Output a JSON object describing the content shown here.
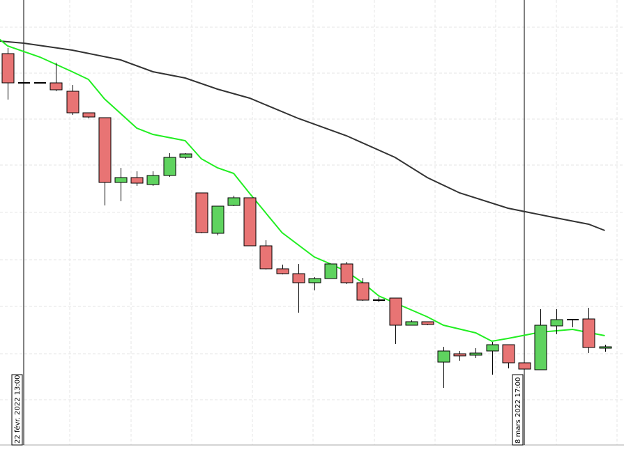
{
  "chart_data": {
    "type": "candlestick",
    "grid": true,
    "colors": {
      "up": "#5fd35f",
      "down": "#e87474",
      "ma_fast": "#22ee22",
      "ma_slow": "#333333",
      "marker": "#000000",
      "grid": "#e6e6e6"
    },
    "ylim": [
      0,
      662
    ],
    "markers": [
      {
        "x": 0,
        "label": "22 févr. 2022 13:00"
      },
      {
        "x": 31,
        "label": "8 mars 2022 17:00"
      }
    ],
    "candles": [
      {
        "o": 585,
        "h": 593,
        "l": 519,
        "c": 543
      },
      {
        "o": 543,
        "h": 543,
        "l": 543,
        "c": 543
      },
      {
        "o": 543,
        "h": 543,
        "l": 543,
        "c": 543
      },
      {
        "o": 543,
        "h": 572,
        "l": 531,
        "c": 533
      },
      {
        "o": 531,
        "h": 540,
        "l": 497,
        "c": 500
      },
      {
        "o": 500,
        "h": 500,
        "l": 492,
        "c": 494
      },
      {
        "o": 493,
        "h": 493,
        "l": 367,
        "c": 400
      },
      {
        "o": 400,
        "h": 421,
        "l": 373,
        "c": 407
      },
      {
        "o": 407,
        "h": 416,
        "l": 395,
        "c": 399
      },
      {
        "o": 397,
        "h": 416,
        "l": 395,
        "c": 410
      },
      {
        "o": 410,
        "h": 442,
        "l": 408,
        "c": 436
      },
      {
        "o": 436,
        "h": 442,
        "l": 434,
        "c": 441
      },
      {
        "o": 385,
        "h": 385,
        "l": 327,
        "c": 328
      },
      {
        "o": 327,
        "h": 366,
        "l": 324,
        "c": 366
      },
      {
        "o": 367,
        "h": 381,
        "l": 366,
        "c": 378
      },
      {
        "o": 378,
        "h": 378,
        "l": 309,
        "c": 309
      },
      {
        "o": 309,
        "h": 317,
        "l": 275,
        "c": 276
      },
      {
        "o": 276,
        "h": 282,
        "l": 268,
        "c": 269
      },
      {
        "o": 269,
        "h": 283,
        "l": 213,
        "c": 256
      },
      {
        "o": 256,
        "h": 264,
        "l": 245,
        "c": 262
      },
      {
        "o": 262,
        "h": 283,
        "l": 262,
        "c": 283
      },
      {
        "o": 283,
        "h": 286,
        "l": 254,
        "c": 256
      },
      {
        "o": 256,
        "h": 263,
        "l": 230,
        "c": 231
      },
      {
        "o": 231,
        "h": 235,
        "l": 228,
        "c": 231
      },
      {
        "o": 234,
        "h": 234,
        "l": 168,
        "c": 195
      },
      {
        "o": 195,
        "h": 202,
        "l": 195,
        "c": 200
      },
      {
        "o": 200,
        "h": 200,
        "l": 195,
        "c": 196
      },
      {
        "o": 142,
        "h": 164,
        "l": 105,
        "c": 158
      },
      {
        "o": 154,
        "h": 158,
        "l": 144,
        "c": 151
      },
      {
        "o": 152,
        "h": 162,
        "l": 148,
        "c": 155
      },
      {
        "o": 158,
        "h": 171,
        "l": 124,
        "c": 167
      },
      {
        "o": 167,
        "h": 167,
        "l": 133,
        "c": 141
      },
      {
        "o": 141,
        "h": 141,
        "l": 132,
        "c": 132
      },
      {
        "o": 131,
        "h": 218,
        "l": 131,
        "c": 195
      },
      {
        "o": 194,
        "h": 218,
        "l": 182,
        "c": 203
      },
      {
        "o": 203,
        "h": 203,
        "l": 192,
        "c": 203
      },
      {
        "o": 204,
        "h": 220,
        "l": 155,
        "c": 163
      },
      {
        "o": 162,
        "h": 167,
        "l": 157,
        "c": 164
      }
    ],
    "ma_fast": [
      {
        "x": -1,
        "y": 615
      },
      {
        "x": 0,
        "y": 596
      },
      {
        "x": 2,
        "y": 580
      },
      {
        "x": 4,
        "y": 559
      },
      {
        "x": 5,
        "y": 548
      },
      {
        "x": 6,
        "y": 520
      },
      {
        "x": 8,
        "y": 478
      },
      {
        "x": 9,
        "y": 469
      },
      {
        "x": 11,
        "y": 460
      },
      {
        "x": 12,
        "y": 434
      },
      {
        "x": 13,
        "y": 421
      },
      {
        "x": 14,
        "y": 413
      },
      {
        "x": 15,
        "y": 384
      },
      {
        "x": 17,
        "y": 328
      },
      {
        "x": 19,
        "y": 293
      },
      {
        "x": 20,
        "y": 283
      },
      {
        "x": 21,
        "y": 272
      },
      {
        "x": 22,
        "y": 256
      },
      {
        "x": 23,
        "y": 237
      },
      {
        "x": 25,
        "y": 217
      },
      {
        "x": 26,
        "y": 207
      },
      {
        "x": 27,
        "y": 195
      },
      {
        "x": 29,
        "y": 184
      },
      {
        "x": 30,
        "y": 172
      },
      {
        "x": 31,
        "y": 176
      },
      {
        "x": 33,
        "y": 185
      },
      {
        "x": 35,
        "y": 189
      },
      {
        "x": 37,
        "y": 180
      }
    ],
    "ma_slow": [
      {
        "x": -1,
        "y": 604
      },
      {
        "x": 1,
        "y": 600
      },
      {
        "x": 4,
        "y": 590
      },
      {
        "x": 7,
        "y": 576
      },
      {
        "x": 9,
        "y": 559
      },
      {
        "x": 11,
        "y": 550
      },
      {
        "x": 13,
        "y": 534
      },
      {
        "x": 15,
        "y": 521
      },
      {
        "x": 18,
        "y": 492
      },
      {
        "x": 21,
        "y": 467
      },
      {
        "x": 24,
        "y": 436
      },
      {
        "x": 26,
        "y": 407
      },
      {
        "x": 28,
        "y": 385
      },
      {
        "x": 31,
        "y": 363
      },
      {
        "x": 34,
        "y": 349
      },
      {
        "x": 36,
        "y": 340
      },
      {
        "x": 37,
        "y": 331
      }
    ]
  }
}
